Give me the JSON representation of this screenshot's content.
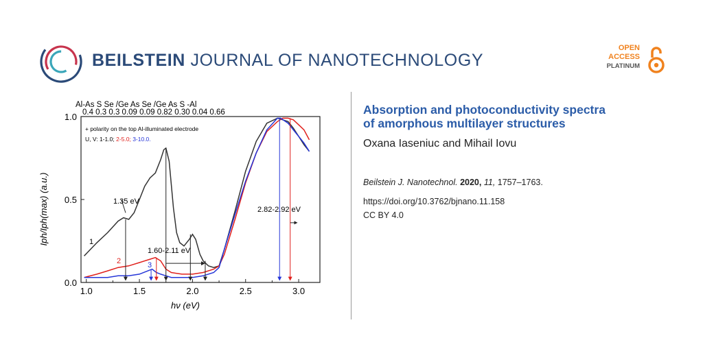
{
  "header": {
    "journal_bold": "BEILSTEIN",
    "journal_light": "JOURNAL OF NANOTECHNOLOGY",
    "open_access": [
      "OPEN",
      "ACCESS",
      "PLATINUM"
    ]
  },
  "article": {
    "title_line1": "Absorption and photoconductivity spectra",
    "title_line2": "of amorphous multilayer structures",
    "authors": "Oxana Iaseniuc and Mihail Iovu",
    "journal_abbrev": "Beilstein J. Nanotechnol.",
    "year": "2020,",
    "volume": "11,",
    "pages": "1757–1763.",
    "doi": "https://doi.org/10.3762/bjnano.11.158",
    "license": "CC BY 4.0"
  },
  "chart_data": {
    "type": "line",
    "xlabel": "hν (eV)",
    "ylabel": "Iph/Iph(max) (a.u.)",
    "xlim": [
      0.95,
      3.2
    ],
    "ylim": [
      0,
      1.0
    ],
    "xticks": [
      "1.0",
      "1.5",
      "2.0",
      "2.5",
      "3.0"
    ],
    "yticks": [
      "0.0",
      "0.5",
      "1.0"
    ],
    "top_layers": [
      "Al-As",
      "S",
      "Se",
      "/Ge",
      "As",
      "Se",
      "/Ge",
      "As",
      "S",
      "-Al"
    ],
    "top_thicknesses": [
      "0.4",
      "0.3",
      "0.3",
      "0.09",
      "0.09",
      "0.82",
      "0.30",
      "0.04",
      "0.66"
    ],
    "legend": {
      "line1": "+ polarity on the top Al-illuminated electrode",
      "line2_prefix": "U, V: 1-1.0;",
      "line2_red": "2-5.0;",
      "line2_blue": "3-10.0."
    },
    "annotations": {
      "a1": "1.35 eV",
      "a2": "1.60-2.11 eV",
      "a3": "2.82-2.92 eV",
      "c1": "1",
      "c2": "2",
      "c3": "3"
    },
    "colors": {
      "s1": "#333333",
      "s2": "#e0201c",
      "s3": "#2535d8"
    },
    "series": [
      {
        "name": "1",
        "x": [
          0.98,
          1.1,
          1.2,
          1.3,
          1.35,
          1.4,
          1.45,
          1.5,
          1.55,
          1.6,
          1.65,
          1.7,
          1.73,
          1.75,
          1.78,
          1.82,
          1.85,
          1.88,
          1.92,
          1.97,
          2.0,
          2.03,
          2.07,
          2.1,
          2.15,
          2.2,
          2.25,
          2.3,
          2.4,
          2.5,
          2.6,
          2.7,
          2.8,
          2.85,
          2.9,
          2.95,
          3.0,
          3.05,
          3.1
        ],
        "y": [
          0.16,
          0.24,
          0.3,
          0.37,
          0.39,
          0.38,
          0.42,
          0.5,
          0.58,
          0.63,
          0.66,
          0.74,
          0.8,
          0.81,
          0.73,
          0.45,
          0.3,
          0.24,
          0.22,
          0.26,
          0.29,
          0.26,
          0.17,
          0.13,
          0.1,
          0.09,
          0.1,
          0.2,
          0.43,
          0.67,
          0.85,
          0.96,
          0.99,
          0.98,
          0.97,
          0.93,
          0.88,
          0.83,
          0.79
        ]
      },
      {
        "name": "2",
        "x": [
          0.98,
          1.1,
          1.2,
          1.3,
          1.4,
          1.5,
          1.6,
          1.65,
          1.7,
          1.75,
          1.8,
          1.9,
          2.0,
          2.1,
          2.2,
          2.25,
          2.3,
          2.4,
          2.5,
          2.6,
          2.7,
          2.8,
          2.85,
          2.9,
          2.95,
          3.0,
          3.05,
          3.1
        ],
        "y": [
          0.03,
          0.05,
          0.07,
          0.09,
          0.1,
          0.12,
          0.14,
          0.15,
          0.13,
          0.08,
          0.06,
          0.05,
          0.05,
          0.06,
          0.08,
          0.1,
          0.17,
          0.38,
          0.6,
          0.78,
          0.91,
          0.97,
          0.99,
          0.99,
          0.98,
          0.95,
          0.92,
          0.86
        ]
      },
      {
        "name": "3",
        "x": [
          0.98,
          1.1,
          1.2,
          1.3,
          1.4,
          1.5,
          1.58,
          1.62,
          1.66,
          1.7,
          1.75,
          1.8,
          1.9,
          2.0,
          2.1,
          2.2,
          2.25,
          2.3,
          2.4,
          2.5,
          2.6,
          2.7,
          2.8,
          2.83,
          2.9,
          2.95,
          3.0,
          3.05,
          3.1
        ],
        "y": [
          0.03,
          0.03,
          0.03,
          0.04,
          0.04,
          0.05,
          0.07,
          0.08,
          0.06,
          0.05,
          0.04,
          0.03,
          0.03,
          0.03,
          0.04,
          0.06,
          0.09,
          0.2,
          0.41,
          0.61,
          0.78,
          0.92,
          0.99,
          0.99,
          0.96,
          0.92,
          0.88,
          0.84,
          0.79
        ]
      }
    ]
  }
}
